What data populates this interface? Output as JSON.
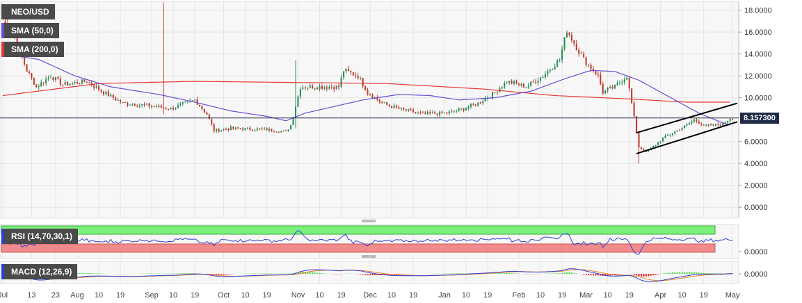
{
  "legends": {
    "pair": "NEO/USD",
    "sma50": "SMA (50,0)",
    "sma200": "SMA (200,0)",
    "rsi": "RSI (14,70,30,1)",
    "macd": "MACD (12,26,9)"
  },
  "price_tag": "8.157300",
  "colors": {
    "up": "#2e8b57",
    "down": "#c0392b",
    "sma50": "#6a4bd6",
    "sma200": "#e53935",
    "channel": "#000000",
    "price_line": "#1e2b47",
    "rsi_line": "#2a3fd6",
    "rsi_overbought": "#7cf27c",
    "rsi_oversold": "#f28b8b",
    "macd_line": "#2a3fd6",
    "macd_signal": "#f07e26",
    "hist_pos": "#3ed43e",
    "hist_neg": "#e02020"
  },
  "chart_data": [
    {
      "type": "candlestick",
      "title": "NEO/USD",
      "y_ticks": [
        "18.0000",
        "16.0000",
        "14.0000",
        "12.0000",
        "10.0000",
        "6.0000",
        "4.0000",
        "2.0000",
        "0.0000"
      ],
      "ylim": [
        -1.0,
        18.8
      ],
      "last_price": 8.1573,
      "x_ticks": [
        "Jul",
        "13",
        "23",
        "Aug",
        "10",
        "19",
        "Sep",
        "10",
        "19",
        "Oct",
        "10",
        "19",
        "Nov",
        "10",
        "19",
        "Dec",
        "10",
        "19",
        "Jan",
        "10",
        "19",
        "Feb",
        "10",
        "19",
        "Mar",
        "10",
        "19",
        "Apr",
        "10",
        "19",
        "May"
      ],
      "x_tick_days": [
        0,
        12,
        22,
        31,
        40,
        49,
        62,
        71,
        80,
        92,
        101,
        110,
        123,
        132,
        141,
        153,
        162,
        171,
        184,
        193,
        202,
        215,
        224,
        233,
        243,
        252,
        261,
        274,
        283,
        292,
        304
      ],
      "close_anchors": [
        [
          0,
          17.0
        ],
        [
          5,
          15.5
        ],
        [
          10,
          12.5
        ],
        [
          14,
          11.0
        ],
        [
          20,
          12.0
        ],
        [
          25,
          11.2
        ],
        [
          35,
          11.5
        ],
        [
          42,
          10.5
        ],
        [
          50,
          9.5
        ],
        [
          60,
          9.3
        ],
        [
          70,
          9.0
        ],
        [
          80,
          9.8
        ],
        [
          85,
          8.5
        ],
        [
          88,
          7.0
        ],
        [
          95,
          7.2
        ],
        [
          110,
          7.1
        ],
        [
          118,
          6.9
        ],
        [
          120,
          7.5
        ],
        [
          124,
          11.0
        ],
        [
          130,
          11.0
        ],
        [
          140,
          11.0
        ],
        [
          142,
          12.5
        ],
        [
          148,
          12.0
        ],
        [
          152,
          10.5
        ],
        [
          158,
          9.5
        ],
        [
          165,
          9.0
        ],
        [
          175,
          8.5
        ],
        [
          185,
          8.6
        ],
        [
          192,
          9.0
        ],
        [
          198,
          9.5
        ],
        [
          205,
          10.5
        ],
        [
          210,
          11.5
        ],
        [
          218,
          11.0
        ],
        [
          225,
          12.0
        ],
        [
          232,
          13.5
        ],
        [
          235,
          16.2
        ],
        [
          238,
          15.0
        ],
        [
          242,
          13.5
        ],
        [
          248,
          12.0
        ],
        [
          250,
          10.5
        ],
        [
          255,
          11.0
        ],
        [
          260,
          12.0
        ],
        [
          262,
          9.5
        ],
        [
          265,
          5.5
        ],
        [
          268,
          5.0
        ],
        [
          275,
          6.3
        ],
        [
          285,
          7.5
        ],
        [
          288,
          8.0
        ],
        [
          293,
          7.4
        ],
        [
          300,
          7.6
        ],
        [
          303,
          8.16
        ]
      ],
      "candle_days": 304,
      "sma50_anchors": [
        [
          0,
          14.0
        ],
        [
          15,
          13.5
        ],
        [
          30,
          12.0
        ],
        [
          45,
          11.0
        ],
        [
          65,
          10.3
        ],
        [
          80,
          9.6
        ],
        [
          95,
          8.8
        ],
        [
          110,
          8.3
        ],
        [
          118,
          7.9
        ],
        [
          126,
          8.6
        ],
        [
          140,
          9.3
        ],
        [
          150,
          9.8
        ],
        [
          165,
          10.3
        ],
        [
          178,
          10.2
        ],
        [
          190,
          9.8
        ],
        [
          205,
          10.0
        ],
        [
          220,
          10.6
        ],
        [
          235,
          11.8
        ],
        [
          245,
          12.5
        ],
        [
          255,
          12.4
        ],
        [
          265,
          11.6
        ],
        [
          280,
          9.8
        ],
        [
          290,
          8.6
        ],
        [
          300,
          7.7
        ],
        [
          303,
          7.5
        ]
      ],
      "sma200_anchors": [
        [
          0,
          10.2
        ],
        [
          40,
          11.3
        ],
        [
          80,
          11.5
        ],
        [
          120,
          11.4
        ],
        [
          160,
          11.3
        ],
        [
          200,
          10.8
        ],
        [
          230,
          10.2
        ],
        [
          260,
          9.9
        ],
        [
          285,
          9.6
        ],
        [
          303,
          9.6
        ]
      ],
      "channel_upper": [
        [
          264,
          6.8
        ],
        [
          306,
          9.5
        ]
      ],
      "channel_lower": [
        [
          264,
          4.9
        ],
        [
          306,
          7.8
        ]
      ]
    },
    {
      "type": "line",
      "title": "RSI (14,70,30,1)",
      "overbought_zone": "top",
      "oversold_zone": "bottom",
      "y_ticks": [
        "0.0000"
      ]
    },
    {
      "type": "line",
      "title": "MACD (12,26,9)",
      "y_ticks": [
        "0.0000"
      ],
      "series": [
        {
          "values": []
        },
        {
          "values": []
        }
      ]
    }
  ]
}
